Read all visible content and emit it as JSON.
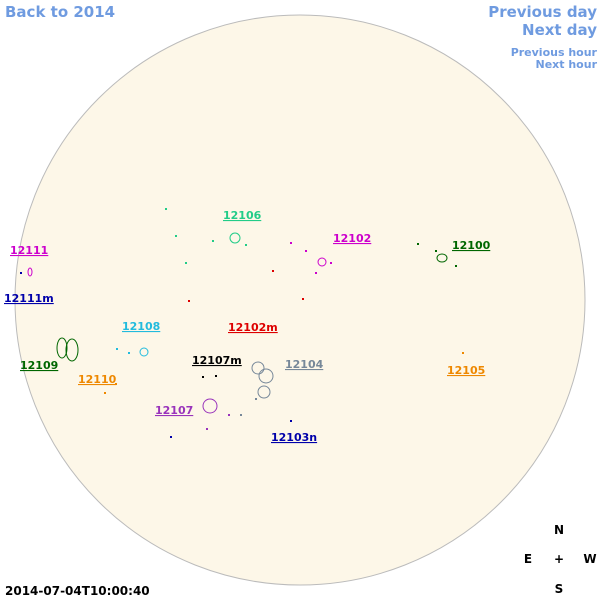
{
  "navigation": {
    "back": "Back to 2014",
    "previous_day": "Previous day",
    "next_day": "Next day",
    "previous_hour": "Previous hour",
    "next_hour": "Next hour"
  },
  "regions": [
    {
      "label": "12111",
      "color": "#cc00cc"
    },
    {
      "label": "12111m",
      "color": "#0000aa"
    },
    {
      "label": "12109",
      "color": "#006600"
    },
    {
      "label": "12110",
      "color": "#ee8800"
    },
    {
      "label": "12108",
      "color": "#22bbdd"
    },
    {
      "label": "12107",
      "color": "#9933bb"
    },
    {
      "label": "12107m",
      "color": "#000000"
    },
    {
      "label": "12106",
      "color": "#22cc88"
    },
    {
      "label": "12102",
      "color": "#cc00cc"
    },
    {
      "label": "12102m",
      "color": "#dd0000"
    },
    {
      "label": "12104",
      "color": "#778899"
    },
    {
      "label": "12103n",
      "color": "#0000aa"
    },
    {
      "label": "12100",
      "color": "#006600"
    },
    {
      "label": "12105",
      "color": "#ee8800"
    }
  ],
  "timestamp": "2014-07-04T10:00:40",
  "compass": {
    "north": "N",
    "east": "E",
    "center": "+",
    "west": "W",
    "south": "S"
  }
}
